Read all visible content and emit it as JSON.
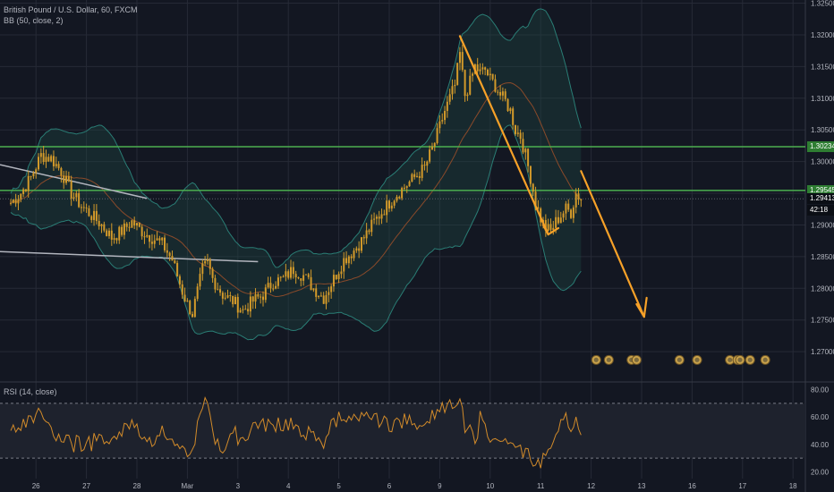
{
  "header": {
    "symbol": "British Pound / U.S. Dollar, 60, FXCM",
    "indicator": "BB (50, close, 2)",
    "rsi": "RSI (14, close)"
  },
  "colors": {
    "background": "#131722",
    "grid": "#262a36",
    "candle": "#d39a2a",
    "bb_band": "#2a7d75",
    "bb_fill": "#1f4a44",
    "basis": "#8a4a2a",
    "level_line": "#4caf50",
    "trendline": "#b2b5be",
    "arrow": "#f7a128",
    "rsi_line": "#d28b2a",
    "rsi_band": "#1e222d"
  },
  "chart_data": {
    "type": "candlestick",
    "price_axis": {
      "range": [
        1.2655,
        1.3255
      ],
      "ticks": [
        "1.32500",
        "1.32000",
        "1.31500",
        "1.31000",
        "1.30500",
        "1.30000",
        "1.29500",
        "1.29000",
        "1.28500",
        "1.28000",
        "1.27500",
        "1.27000"
      ],
      "tick_values": [
        1.325,
        1.32,
        1.315,
        1.31,
        1.305,
        1.3,
        1.295,
        1.29,
        1.285,
        1.28,
        1.275,
        1.27
      ]
    },
    "time_axis": {
      "labels": [
        "26",
        "27",
        "28",
        "Mar",
        "3",
        "4",
        "5",
        "6",
        "9",
        "10",
        "11",
        "12",
        "13",
        "16",
        "17",
        "18"
      ],
      "index": [
        10,
        30,
        50,
        70,
        90,
        110,
        130,
        150,
        170,
        190,
        210,
        230,
        250,
        270,
        290,
        310
      ]
    },
    "price_tags": [
      {
        "label": "1.30234",
        "value": 1.30234,
        "style": "green"
      },
      {
        "label": "1.29545",
        "value": 1.29545,
        "style": "green"
      },
      {
        "label": "1.29413",
        "value": 1.29413,
        "style": "dark"
      },
      {
        "label": "42:18",
        "value": 1.2923,
        "style": "dark"
      }
    ],
    "horizontal_levels": [
      1.30234,
      1.29545
    ],
    "current_price": 1.29413,
    "rsi": {
      "range": [
        15,
        85
      ],
      "ticks": [
        "80.00",
        "60.00",
        "40.00",
        "20.00"
      ],
      "tick_values": [
        80,
        60,
        40,
        20
      ],
      "upper": 70,
      "lower": 30
    },
    "close_path": [
      [
        0,
        1.2935
      ],
      [
        4,
        1.295
      ],
      [
        8,
        1.2975
      ],
      [
        12,
        1.301
      ],
      [
        16,
        1.3005
      ],
      [
        20,
        1.2985
      ],
      [
        24,
        1.295
      ],
      [
        28,
        1.293
      ],
      [
        32,
        1.2915
      ],
      [
        36,
        1.29
      ],
      [
        40,
        1.288
      ],
      [
        44,
        1.289
      ],
      [
        48,
        1.2905
      ],
      [
        52,
        1.289
      ],
      [
        56,
        1.288
      ],
      [
        60,
        1.287
      ],
      [
        64,
        1.2845
      ],
      [
        68,
        1.2795
      ],
      [
        70,
        1.2775
      ],
      [
        72,
        1.276
      ],
      [
        74,
        1.2795
      ],
      [
        76,
        1.283
      ],
      [
        78,
        1.284
      ],
      [
        80,
        1.2815
      ],
      [
        84,
        1.279
      ],
      [
        88,
        1.278
      ],
      [
        92,
        1.2765
      ],
      [
        96,
        1.278
      ],
      [
        100,
        1.279
      ],
      [
        104,
        1.281
      ],
      [
        108,
        1.2815
      ],
      [
        112,
        1.283
      ],
      [
        116,
        1.282
      ],
      [
        120,
        1.28
      ],
      [
        124,
        1.2785
      ],
      [
        128,
        1.2815
      ],
      [
        132,
        1.2845
      ],
      [
        136,
        1.286
      ],
      [
        140,
        1.288
      ],
      [
        144,
        1.2905
      ],
      [
        148,
        1.2925
      ],
      [
        152,
        1.2945
      ],
      [
        156,
        1.296
      ],
      [
        160,
        1.2975
      ],
      [
        164,
        1.299
      ],
      [
        168,
        1.303
      ],
      [
        172,
        1.308
      ],
      [
        176,
        1.312
      ],
      [
        178,
        1.317
      ],
      [
        180,
        1.3105
      ],
      [
        182,
        1.3125
      ],
      [
        184,
        1.315
      ],
      [
        186,
        1.314
      ],
      [
        188,
        1.3145
      ],
      [
        190,
        1.313
      ],
      [
        192,
        1.312
      ],
      [
        194,
        1.3105
      ],
      [
        196,
        1.3095
      ],
      [
        198,
        1.308
      ],
      [
        200,
        1.305
      ],
      [
        202,
        1.304
      ],
      [
        204,
        1.301
      ],
      [
        206,
        1.2975
      ],
      [
        208,
        1.2935
      ],
      [
        210,
        1.291
      ],
      [
        212,
        1.2895
      ],
      [
        214,
        1.289
      ],
      [
        216,
        1.2905
      ],
      [
        218,
        1.2915
      ],
      [
        220,
        1.2925
      ],
      [
        222,
        1.292
      ],
      [
        224,
        1.295
      ],
      [
        226,
        1.2941
      ]
    ]
  }
}
